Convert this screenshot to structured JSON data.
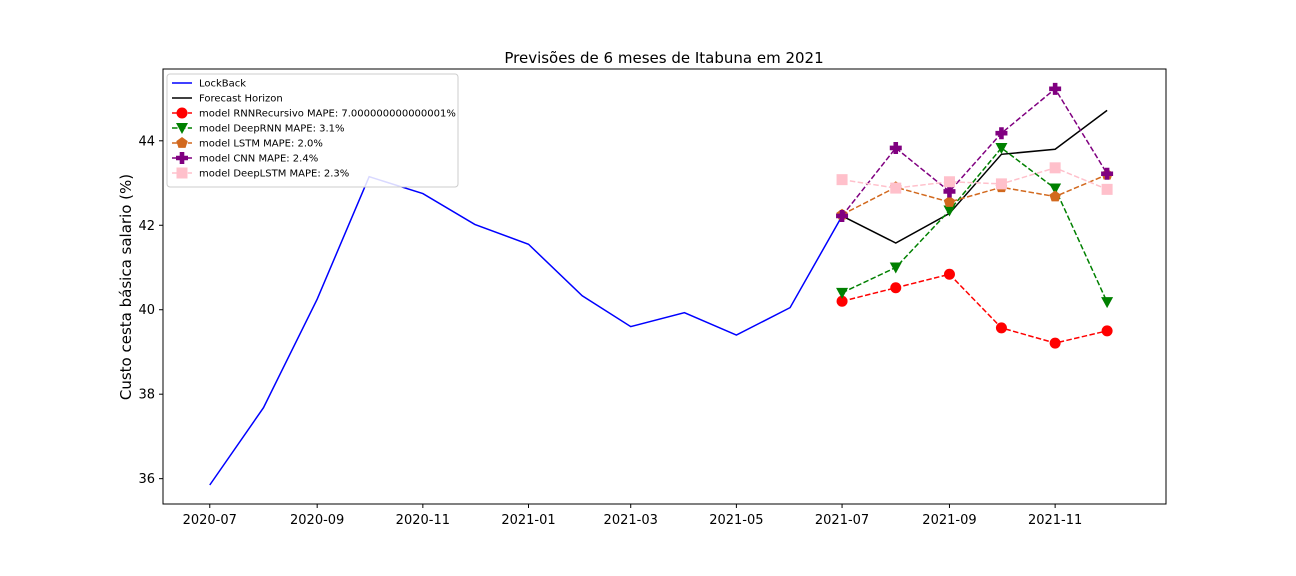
{
  "chart_data": {
    "type": "line",
    "title": "Previsões de 6 meses de Itabuna em 2021",
    "xlabel": "",
    "ylabel": "Custo cesta básica salario (%)",
    "x_ticks": [
      "2020-07",
      "2020-09",
      "2020-11",
      "2021-01",
      "2021-03",
      "2021-05",
      "2021-07",
      "2021-09",
      "2021-11"
    ],
    "y_ticks": [
      "36",
      "38",
      "40",
      "42",
      "44"
    ],
    "ylim": [
      35.4,
      45.7
    ],
    "xlim": [
      "2020-06-04",
      "2022-01-04"
    ],
    "grid": false,
    "legend_position": "top-left",
    "series": [
      {
        "name": "LockBack",
        "color": "#0000ff",
        "linestyle": "solid",
        "marker": "none",
        "x": [
          "2020-07-01",
          "2020-08-01",
          "2020-09-01",
          "2020-10-01",
          "2020-11-01",
          "2020-12-01",
          "2021-01-01",
          "2021-02-01",
          "2021-03-01",
          "2021-04-01",
          "2021-05-01",
          "2021-06-01",
          "2021-07-01"
        ],
        "y": [
          35.85,
          37.68,
          40.25,
          43.15,
          42.75,
          42.02,
          41.55,
          40.33,
          39.6,
          39.93,
          39.4,
          40.05,
          42.22
        ]
      },
      {
        "name": "Forecast Horizon",
        "color": "#000000",
        "linestyle": "solid",
        "marker": "none",
        "x": [
          "2021-07-01",
          "2021-08-01",
          "2021-09-01",
          "2021-10-01",
          "2021-11-01",
          "2021-12-01"
        ],
        "y": [
          42.22,
          41.58,
          42.28,
          43.68,
          43.8,
          44.72
        ]
      },
      {
        "name": "model RNNRecursivo MAPE: 7.000000000000001%",
        "color": "#ff0000",
        "linestyle": "dashed",
        "marker": "circle",
        "x": [
          "2021-07-01",
          "2021-08-01",
          "2021-09-01",
          "2021-10-01",
          "2021-11-01",
          "2021-12-01"
        ],
        "y": [
          40.2,
          40.52,
          40.84,
          39.57,
          39.21,
          39.5
        ]
      },
      {
        "name": "model DeepRNN MAPE: 3.1%",
        "color": "#008000",
        "linestyle": "dashed",
        "marker": "triangle-down",
        "x": [
          "2021-07-01",
          "2021-08-01",
          "2021-09-01",
          "2021-10-01",
          "2021-11-01",
          "2021-12-01"
        ],
        "y": [
          40.4,
          41.0,
          42.35,
          43.83,
          42.87,
          40.18
        ]
      },
      {
        "name": "model LSTM MAPE: 2.0%",
        "color": "#d2691e",
        "linestyle": "dashed",
        "marker": "pentagon",
        "x": [
          "2021-07-01",
          "2021-08-01",
          "2021-09-01",
          "2021-10-01",
          "2021-11-01",
          "2021-12-01"
        ],
        "y": [
          42.25,
          42.9,
          42.55,
          42.9,
          42.68,
          43.2
        ]
      },
      {
        "name": "model CNN MAPE: 2.4%",
        "color": "#800080",
        "linestyle": "dashed",
        "marker": "plus",
        "x": [
          "2021-07-01",
          "2021-08-01",
          "2021-09-01",
          "2021-10-01",
          "2021-11-01",
          "2021-12-01"
        ],
        "y": [
          42.22,
          43.83,
          42.8,
          44.18,
          45.23,
          43.22
        ]
      },
      {
        "name": "model DeepLSTM MAPE: 2.3%",
        "color": "#ffc0cb",
        "linestyle": "dashed",
        "marker": "square",
        "x": [
          "2021-07-01",
          "2021-08-01",
          "2021-09-01",
          "2021-10-01",
          "2021-11-01",
          "2021-12-01"
        ],
        "y": [
          43.08,
          42.88,
          43.03,
          42.98,
          43.36,
          42.85
        ]
      }
    ]
  }
}
